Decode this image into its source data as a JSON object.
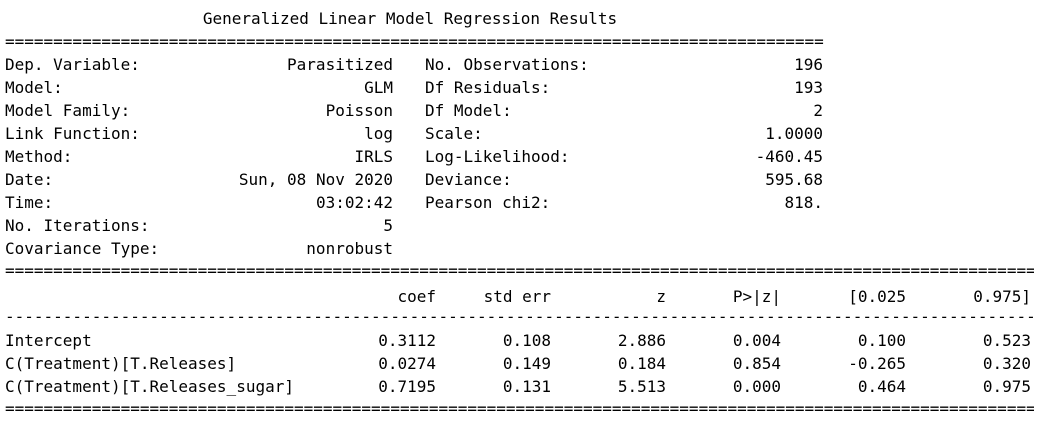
{
  "title": "Generalized Linear Model Regression Results",
  "rules": {
    "double": "==================================================================================================================================================",
    "single": "--------------------------------------------------------------------------------------------------------------------------------------------------"
  },
  "info": {
    "left": [
      {
        "label": "Dep. Variable:",
        "value": "Parasitized"
      },
      {
        "label": "Model:",
        "value": "GLM"
      },
      {
        "label": "Model Family:",
        "value": "Poisson"
      },
      {
        "label": "Link Function:",
        "value": "log"
      },
      {
        "label": "Method:",
        "value": "IRLS"
      },
      {
        "label": "Date:",
        "value": "Sun, 08 Nov 2020"
      },
      {
        "label": "Time:",
        "value": "03:02:42"
      },
      {
        "label": "No. Iterations:",
        "value": "5"
      },
      {
        "label": "Covariance Type:",
        "value": "nonrobust"
      }
    ],
    "right": [
      {
        "label": "No. Observations:",
        "value": "196"
      },
      {
        "label": "Df Residuals:",
        "value": "193"
      },
      {
        "label": "Df Model:",
        "value": "2"
      },
      {
        "label": "Scale:",
        "value": "1.0000"
      },
      {
        "label": "Log-Likelihood:",
        "value": "-460.45"
      },
      {
        "label": "Deviance:",
        "value": "595.68"
      },
      {
        "label": "Pearson chi2:",
        "value": "818."
      }
    ]
  },
  "coef_table": {
    "headers": [
      "coef",
      "std err",
      "z",
      "P>|z|",
      "[0.025",
      "0.975]"
    ],
    "rows": [
      {
        "name": "Intercept",
        "values": [
          "0.3112",
          "0.108",
          "2.886",
          "0.004",
          "0.100",
          "0.523"
        ]
      },
      {
        "name": "C(Treatment)[T.Releases]",
        "values": [
          "0.0274",
          "0.149",
          "0.184",
          "0.854",
          "-0.265",
          "0.320"
        ]
      },
      {
        "name": "C(Treatment)[T.Releases_sugar]",
        "values": [
          "0.7195",
          "0.131",
          "5.513",
          "0.000",
          "0.464",
          "0.975"
        ]
      }
    ]
  }
}
